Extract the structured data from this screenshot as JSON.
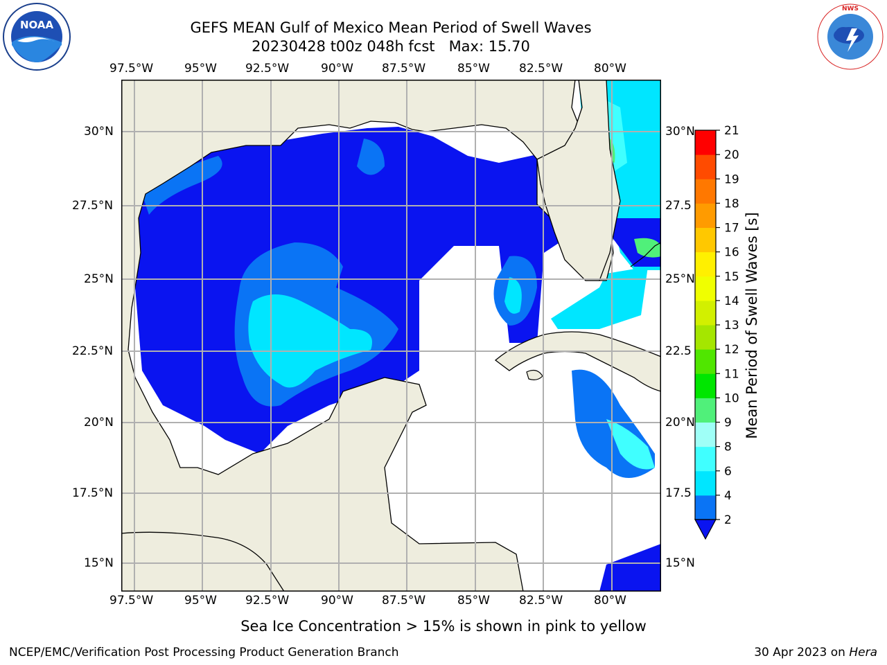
{
  "title": {
    "line1": "GEFS MEAN Gulf of Mexico Mean Period of Swell Waves",
    "line2": "20230428 t00z 048h fcst   Max: 15.70"
  },
  "logos": {
    "noaa_text": "NOAA",
    "noaa_ring_text": "NATIONAL OCEANIC AND ATMOSPHERIC ADMINISTRATION · U.S. DEPARTMENT OF COMMERCE",
    "nws_ring_text": "NATIONAL WEATHER SERVICE"
  },
  "map": {
    "lon_labels_top": [
      "97.5°W",
      "95°W",
      "92.5°W",
      "90°W",
      "87.5°W",
      "85°W",
      "82.5°W",
      "80°W"
    ],
    "lon_labels_bottom": [
      "97.5°W",
      "95°W",
      "92.5°W",
      "90°W",
      "87.5°W",
      "85°W",
      "82.5°W",
      "80°W"
    ],
    "lat_labels_left": [
      "30°N",
      "27.5°N",
      "25°N",
      "22.5°N",
      "20°N",
      "17.5°N",
      "15°N"
    ],
    "lat_labels_right": [
      "30°N",
      "27.5",
      "25°N",
      "22.5",
      "20°N",
      "17.5",
      "15°N"
    ],
    "lon_values": [
      -97.5,
      -95,
      -92.5,
      -90,
      -87.5,
      -85,
      -82.5,
      -80
    ],
    "lat_values": [
      30,
      27.5,
      25,
      22.5,
      20,
      17.5,
      15
    ],
    "extent": {
      "lon_min": -98,
      "lon_max": -78.2,
      "lat_min": 14,
      "lat_max": 31.8
    },
    "colors": {
      "land": "#eeedde",
      "ocean": "#ffffff",
      "grid": "#b0b0b0",
      "coast": "#000000"
    }
  },
  "colorbar": {
    "label": "Mean Period of Swell Waves [s]",
    "tick_labels": [
      "2",
      "4",
      "6",
      "8",
      "9",
      "10",
      "11",
      "12",
      "13",
      "14",
      "15",
      "16",
      "17",
      "18",
      "19",
      "20",
      "21"
    ],
    "levels": [
      2,
      4,
      6,
      8,
      9,
      10,
      11,
      12,
      13,
      14,
      15,
      16,
      17,
      18,
      19,
      20,
      21
    ],
    "colors": [
      "#0a74f5",
      "#00e6ff",
      "#40ffff",
      "#9ffff7",
      "#50f07a",
      "#00e600",
      "#50e600",
      "#a5e600",
      "#d2f000",
      "#f0ff00",
      "#fff000",
      "#ffc800",
      "#ff9b00",
      "#ff7800",
      "#ff4b00",
      "#ff0000"
    ],
    "under_color": "#0a14f0",
    "extend": "min"
  },
  "chart_data": {
    "type": "heatmap",
    "title": "GEFS MEAN Gulf of Mexico Mean Period of Swell Waves",
    "subtitle": "20230428 t00z 048h fcst   Max: 15.70",
    "max_value": 15.7,
    "units": "s",
    "xlabel": "",
    "ylabel": "",
    "xlim": [
      -98,
      -78.2
    ],
    "ylim": [
      14,
      31.8
    ],
    "levels": [
      2,
      4,
      6,
      8,
      9,
      10,
      11,
      12,
      13,
      14,
      15,
      16,
      17,
      18,
      19,
      20,
      21
    ],
    "grid": true,
    "legend": "colorbar-right"
  },
  "notes": {
    "sea_ice": "Sea Ice Concentration > 15% is shown in pink to yellow"
  },
  "footer": {
    "left": "NCEP/EMC/Verification Post Processing Product Generation Branch",
    "right_prefix": "30 Apr 2023 on ",
    "right_host": "Hera"
  }
}
